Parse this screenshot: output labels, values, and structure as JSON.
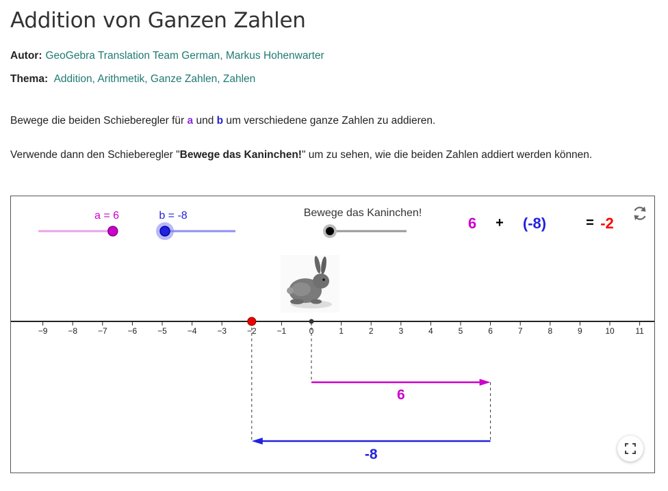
{
  "page": {
    "title": "Addition von Ganzen Zahlen",
    "author_label": "Autor:",
    "authors": [
      "GeoGebra Translation Team German",
      "Markus Hohenwarter"
    ],
    "topic_label": "Thema:",
    "topics": [
      "Addition",
      "Arithmetik",
      "Ganze Zahlen",
      "Zahlen"
    ],
    "list_separator": ",",
    "instruction1": {
      "before": "Bewege die beiden Schieberegler für",
      "a": "a",
      "mid": "und",
      "b": "b",
      "after": "um verschiedene ganze Zahlen zu addieren."
    },
    "instruction2": {
      "before": "Verwende dann den Schieberegler \"",
      "bold": "Bewege das Kaninchen!",
      "after": "\" um zu sehen, wie die beiden Zahlen addiert werden können."
    }
  },
  "applet": {
    "slider_a": {
      "label": "a = 6",
      "value": 6,
      "min": -10,
      "max": 10,
      "color": "#cc00cc"
    },
    "slider_b": {
      "label": "b = -8",
      "value": -8,
      "min": -10,
      "max": 10,
      "color": "#2222dd"
    },
    "slider_rabbit": {
      "label": "Bewege das Kaninchen!",
      "value": 0,
      "min": 0,
      "max": 1,
      "color": "#000000"
    },
    "equation": {
      "a": "6",
      "plus": "+",
      "b": "(-8)",
      "eq": "=",
      "result": "-2",
      "a_color": "#cc00cc",
      "b_color": "#2222dd",
      "result_color": "#ff0000"
    },
    "number_line": {
      "ticks": [
        "−9",
        "−8",
        "−7",
        "−6",
        "−5",
        "−4",
        "−3",
        "−2",
        "−1",
        "0",
        "1",
        "2",
        "3",
        "4",
        "5",
        "6",
        "7",
        "8",
        "9",
        "10",
        "11"
      ],
      "start": -9,
      "result_point": -2,
      "origin_point": 0
    },
    "arrow_a": {
      "from": 0,
      "to": 6,
      "label": "6",
      "color": "#cc00cc"
    },
    "arrow_b": {
      "from": 6,
      "to": -2,
      "label": "-8",
      "color": "#2222dd"
    },
    "icons": {
      "rabbit": "rabbit-image",
      "reset": "reset-icon",
      "fullscreen": "fullscreen-icon"
    }
  }
}
